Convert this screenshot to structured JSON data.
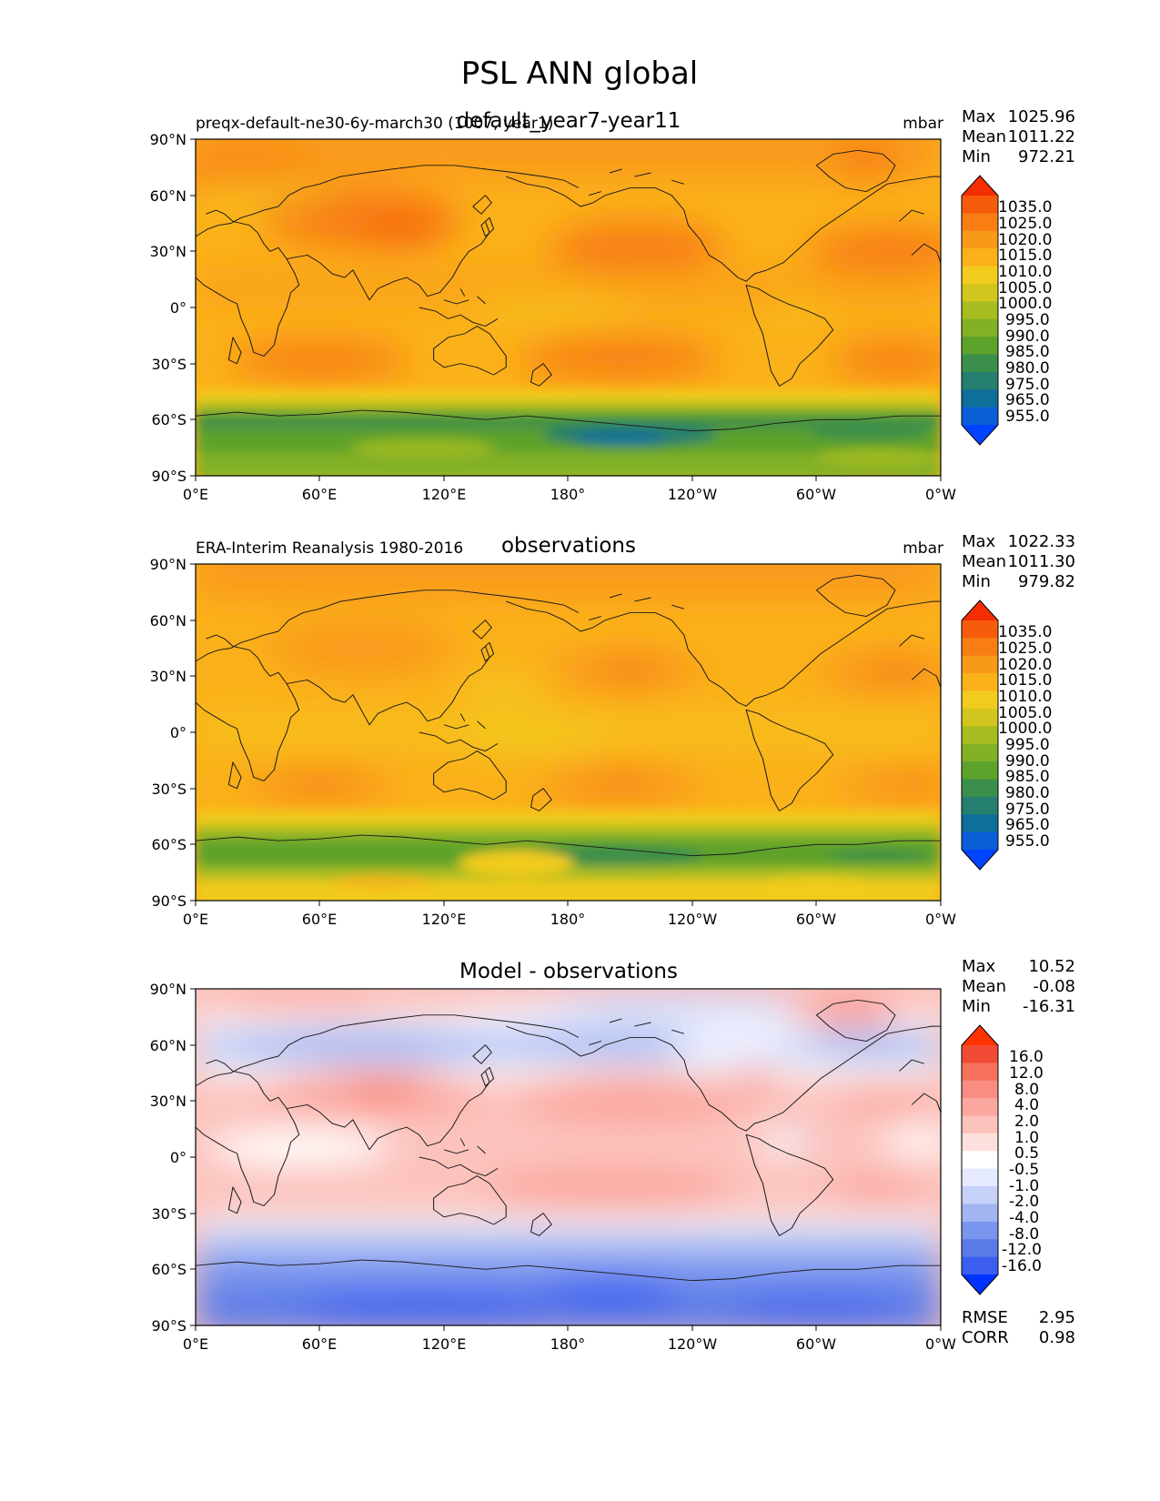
{
  "figure": {
    "title": "PSL ANN global"
  },
  "axes": {
    "lat_ticks": [
      "90°N",
      "60°N",
      "30°N",
      "0°",
      "30°S",
      "60°S",
      "90°S"
    ],
    "lon_ticks": [
      "0°E",
      "60°E",
      "120°E",
      "180°",
      "120°W",
      "60°W",
      "0°W"
    ]
  },
  "colors": {
    "abs_levels": [
      "#0044ff",
      "#0a5fd6",
      "#0f6f99",
      "#257f6e",
      "#3c8f4a",
      "#5da22b",
      "#82b125",
      "#a8bd22",
      "#d2c61e",
      "#f2cb1f",
      "#fbb11a",
      "#f9991a",
      "#f87e14",
      "#f65b0b",
      "#f42d03"
    ],
    "diff_levels": [
      "#0033ff",
      "#3b5ef0",
      "#5a7ae8",
      "#7a95ee",
      "#a2b5f2",
      "#c6d1f7",
      "#e6eaff",
      "#ffffff",
      "#fde0dd",
      "#fcc3bd",
      "#fba79f",
      "#f98d83",
      "#f6725f",
      "#f24b35",
      "#ff3300"
    ]
  },
  "chart_data": [
    {
      "type": "heatmap",
      "title": "default_year7-year11",
      "left_label": "preqx-default-ne30-6y-march30 (1007, year1)",
      "units": "mbar",
      "stats": [
        {
          "label": "Max",
          "value": "1025.96"
        },
        {
          "label": "Mean",
          "value": "1011.22"
        },
        {
          "label": "Min",
          "value": "972.21"
        }
      ],
      "colorbar_labels": [
        "1035.0",
        "1025.0",
        "1020.0",
        "1015.0",
        "1010.0",
        "1005.0",
        "1000.0",
        "995.0",
        "990.0",
        "985.0",
        "980.0",
        "975.0",
        "965.0",
        "955.0"
      ],
      "xlim": [
        0,
        360
      ],
      "ylim": [
        -90,
        90
      ]
    },
    {
      "type": "heatmap",
      "title": "observations",
      "left_label": "ERA-Interim Reanalysis 1980-2016",
      "units": "mbar",
      "stats": [
        {
          "label": "Max",
          "value": "1022.33"
        },
        {
          "label": "Mean",
          "value": "1011.30"
        },
        {
          "label": "Min",
          "value": "979.82"
        }
      ],
      "colorbar_labels": [
        "1035.0",
        "1025.0",
        "1020.0",
        "1015.0",
        "1010.0",
        "1005.0",
        "1000.0",
        "995.0",
        "990.0",
        "985.0",
        "980.0",
        "975.0",
        "965.0",
        "955.0"
      ],
      "xlim": [
        0,
        360
      ],
      "ylim": [
        -90,
        90
      ]
    },
    {
      "type": "heatmap",
      "title": "Model - observations",
      "left_label": "",
      "units": "",
      "stats": [
        {
          "label": "Max",
          "value": "10.52"
        },
        {
          "label": "Mean",
          "value": "-0.08"
        },
        {
          "label": "Min",
          "value": "-16.31"
        }
      ],
      "colorbar_labels": [
        "16.0",
        "12.0",
        "8.0",
        "4.0",
        "2.0",
        "1.0",
        "0.5",
        "-0.5",
        "-1.0",
        "-2.0",
        "-4.0",
        "-8.0",
        "-12.0",
        "-16.0"
      ],
      "metrics": [
        {
          "label": "RMSE",
          "value": "2.95"
        },
        {
          "label": "CORR",
          "value": "0.98"
        }
      ],
      "xlim": [
        0,
        360
      ],
      "ylim": [
        -90,
        90
      ]
    }
  ]
}
